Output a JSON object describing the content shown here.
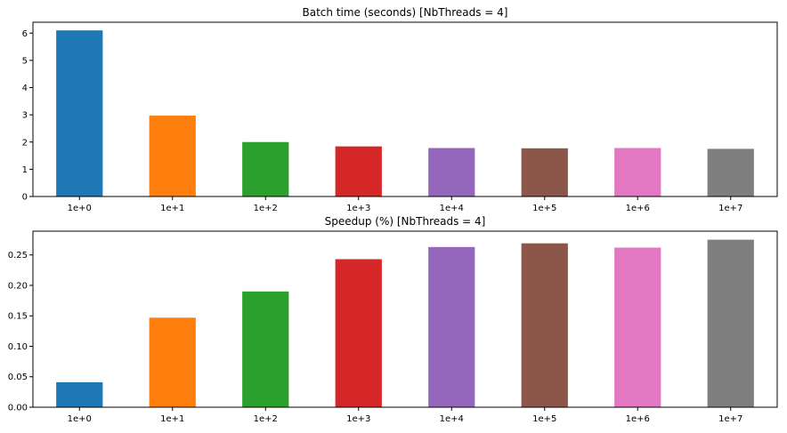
{
  "chart_data": [
    {
      "type": "bar",
      "title": "Batch time (seconds) [NbThreads = 4]",
      "xlabel": "",
      "ylabel": "",
      "categories": [
        "1e+0",
        "1e+1",
        "1e+2",
        "1e+3",
        "1e+4",
        "1e+5",
        "1e+6",
        "1e+7"
      ],
      "values": [
        6.1,
        2.97,
        2.0,
        1.84,
        1.78,
        1.77,
        1.78,
        1.75
      ],
      "ylim": [
        0,
        6.4
      ],
      "yticks": [
        0,
        1,
        2,
        3,
        4,
        5,
        6
      ],
      "ytick_labels": [
        "0",
        "1",
        "2",
        "3",
        "4",
        "5",
        "6"
      ],
      "colors": [
        "#1f77b4",
        "#ff7f0e",
        "#2ca02c",
        "#d62728",
        "#9467bd",
        "#8c564b",
        "#e377c2",
        "#7f7f7f"
      ],
      "grid": false,
      "legend": "none"
    },
    {
      "type": "bar",
      "title": "Speedup (%) [NbThreads = 4]",
      "xlabel": "",
      "ylabel": "",
      "categories": [
        "1e+0",
        "1e+1",
        "1e+2",
        "1e+3",
        "1e+4",
        "1e+5",
        "1e+6",
        "1e+7"
      ],
      "values": [
        0.041,
        0.147,
        0.19,
        0.243,
        0.263,
        0.269,
        0.262,
        0.275
      ],
      "ylim": [
        0,
        0.289
      ],
      "yticks": [
        0,
        0.05,
        0.1,
        0.15,
        0.2,
        0.25
      ],
      "ytick_labels": [
        "0.00",
        "0.05",
        "0.10",
        "0.15",
        "0.20",
        "0.25"
      ],
      "colors": [
        "#1f77b4",
        "#ff7f0e",
        "#2ca02c",
        "#d62728",
        "#9467bd",
        "#8c564b",
        "#e377c2",
        "#7f7f7f"
      ],
      "grid": false,
      "legend": "none"
    }
  ]
}
